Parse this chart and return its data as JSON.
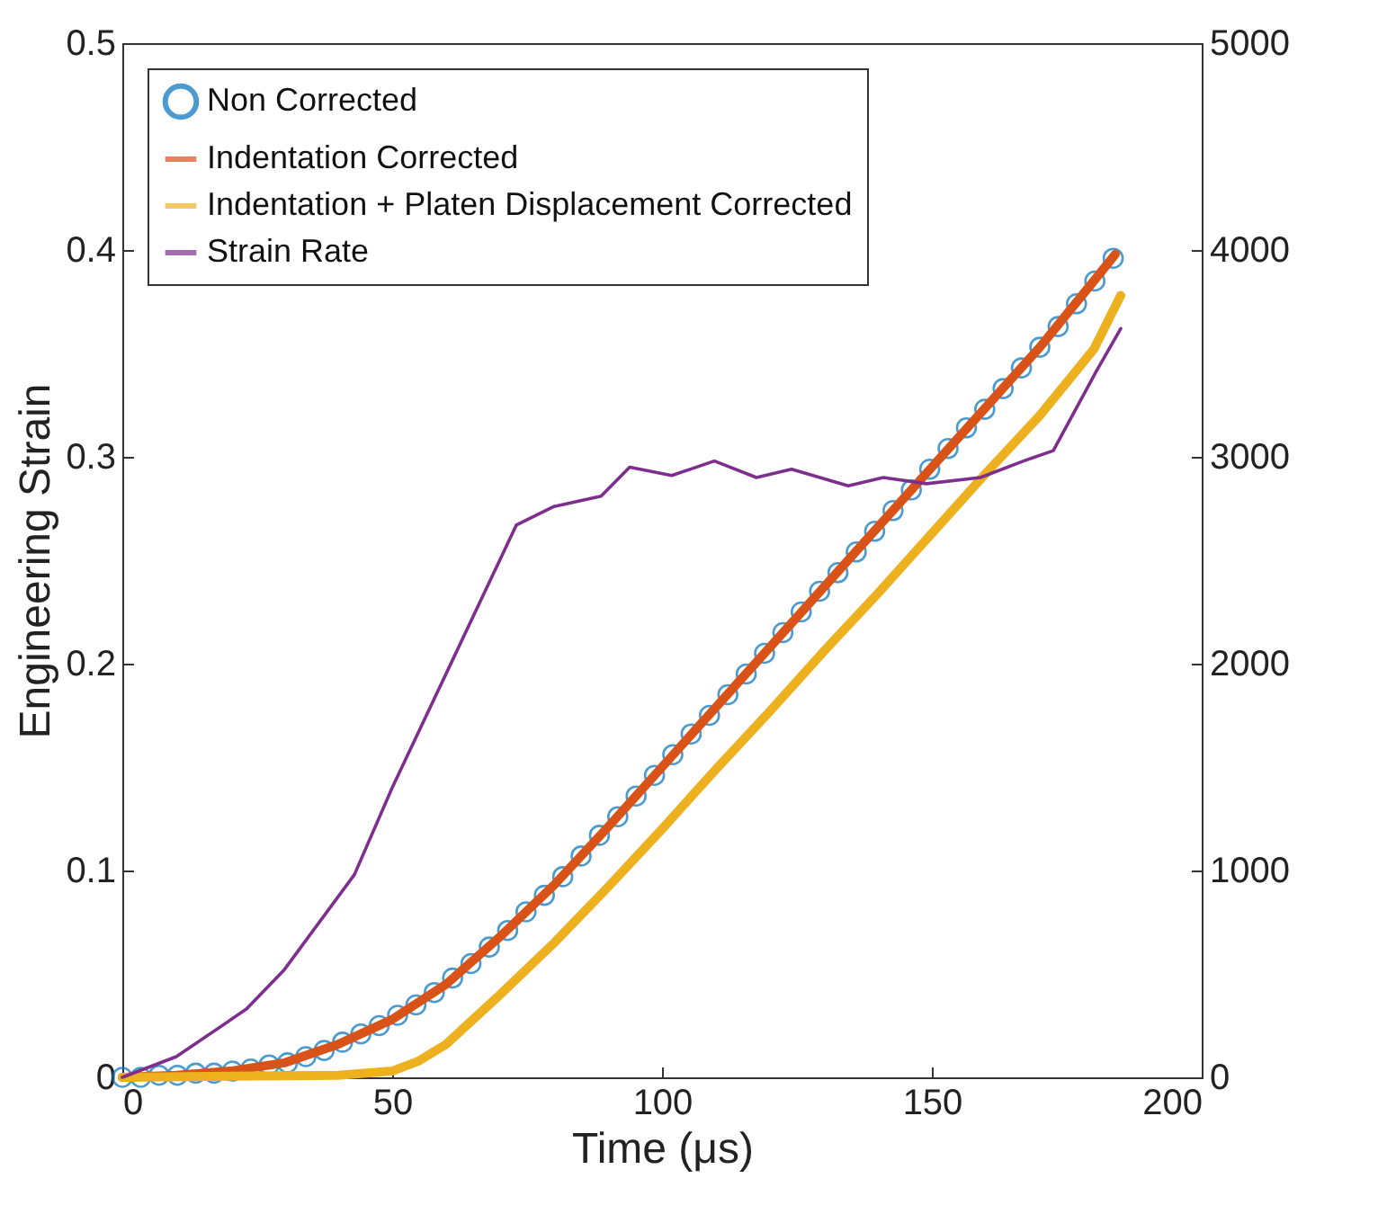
{
  "chart_data": {
    "type": "line",
    "xlabel": "Time (μs)",
    "ylabel": "Engineering Strain",
    "xlim": [
      0,
      200
    ],
    "xticks": [
      0,
      50,
      100,
      150,
      200
    ],
    "ylim": [
      0,
      0.5
    ],
    "yticks": [
      0,
      0.1,
      0.2,
      0.3,
      0.4,
      0.5
    ],
    "y2lim": [
      0,
      5000
    ],
    "y2ticks": [
      0,
      1000,
      2000,
      3000,
      4000,
      5000
    ],
    "legend": "top left",
    "grid": false,
    "series": [
      {
        "name": "Non Corrected",
        "type": "scatter",
        "marker": "circle",
        "color": "#0072bd",
        "x": [
          0,
          3.4,
          6.8,
          10.2,
          13.6,
          17,
          20.4,
          23.8,
          27.2,
          30.6,
          34,
          37.4,
          40.8,
          44.2,
          47.6,
          51,
          54.4,
          57.8,
          61.2,
          64.6,
          68,
          71.4,
          74.8,
          78.2,
          81.6,
          85,
          88.4,
          91.8,
          95.2,
          98.6,
          102,
          105.4,
          108.8,
          112.2,
          115.6,
          119,
          122.4,
          125.8,
          129.2,
          132.6,
          136,
          139.4,
          142.8,
          146.2,
          149.6,
          153,
          156.4,
          159.8,
          163.2,
          166.6,
          170,
          173.4,
          176.8,
          180.2,
          183.6
        ],
        "values": [
          0,
          0,
          0.001,
          0.001,
          0.002,
          0.002,
          0.003,
          0.004,
          0.006,
          0.007,
          0.01,
          0.013,
          0.017,
          0.021,
          0.025,
          0.03,
          0.035,
          0.041,
          0.048,
          0.055,
          0.063,
          0.071,
          0.08,
          0.088,
          0.097,
          0.107,
          0.117,
          0.126,
          0.136,
          0.146,
          0.156,
          0.166,
          0.175,
          0.185,
          0.195,
          0.205,
          0.215,
          0.225,
          0.235,
          0.244,
          0.254,
          0.264,
          0.274,
          0.284,
          0.294,
          0.304,
          0.314,
          0.323,
          0.333,
          0.343,
          0.353,
          0.363,
          0.374,
          0.385,
          0.396
        ]
      },
      {
        "name": "Indentation Corrected",
        "marker": "none",
        "color": "#d95319",
        "x": [
          0,
          10,
          20,
          30,
          40,
          50,
          60,
          70,
          80,
          90,
          100,
          110,
          120,
          130,
          140,
          150,
          160,
          170,
          180,
          184
        ],
        "values": [
          0,
          0.001,
          0.003,
          0.007,
          0.016,
          0.028,
          0.045,
          0.068,
          0.093,
          0.121,
          0.15,
          0.179,
          0.208,
          0.237,
          0.266,
          0.295,
          0.324,
          0.353,
          0.385,
          0.398
        ]
      },
      {
        "name": "Indentation + Platen Displacement Corrected",
        "marker": "none",
        "color": "#edb120",
        "x": [
          0,
          40,
          50,
          55,
          60,
          70,
          80,
          90,
          100,
          110,
          120,
          130,
          140,
          150,
          160,
          170,
          180,
          185
        ],
        "values": [
          0,
          0.001,
          0.003,
          0.008,
          0.016,
          0.04,
          0.065,
          0.092,
          0.12,
          0.149,
          0.177,
          0.206,
          0.234,
          0.263,
          0.292,
          0.32,
          0.352,
          0.378
        ]
      },
      {
        "name": "Strain Rate",
        "marker": "none",
        "axis": "y2",
        "color": "#7e2f8e",
        "x": [
          0,
          10,
          23,
          30,
          43,
          50,
          62.5,
          73,
          80,
          88.7,
          94,
          101.8,
          109.7,
          117.5,
          124,
          134.5,
          141,
          149,
          159,
          167,
          172.5,
          180.4,
          185
        ],
        "values": [
          0,
          100,
          330,
          520,
          980,
          1400,
          2090,
          2670,
          2760,
          2810,
          2950,
          2910,
          2980,
          2900,
          2940,
          2860,
          2900,
          2870,
          2900,
          2980,
          3030,
          3410,
          3620
        ]
      }
    ]
  }
}
